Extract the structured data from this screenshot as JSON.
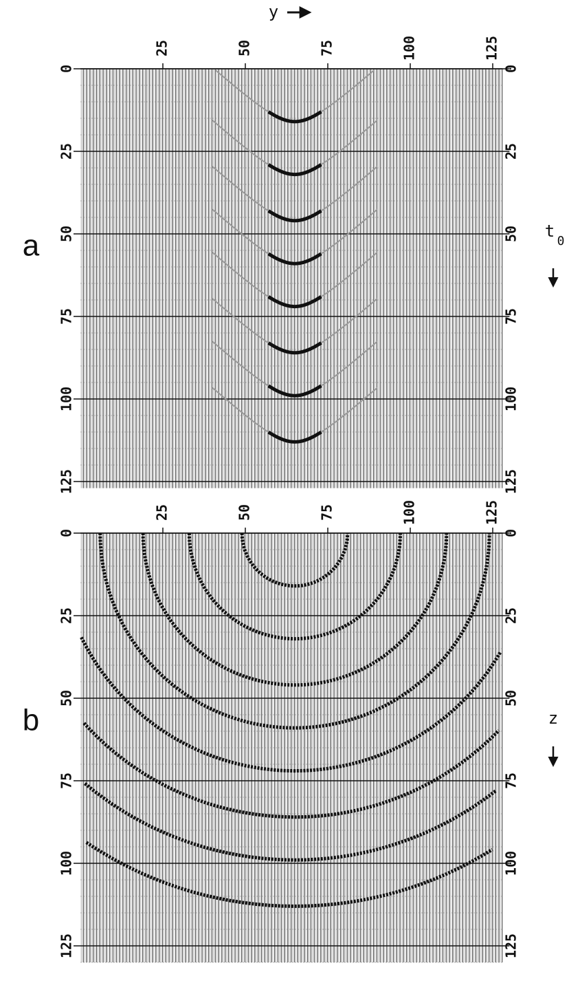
{
  "chart_data": [
    {
      "type": "hyperbola",
      "panel_label": "a",
      "x_label": "y",
      "y_label": {
        "text": "t",
        "subscript": "0"
      },
      "xlim": [
        0,
        128
      ],
      "xticks": [
        25,
        50,
        75,
        100,
        125
      ],
      "ylim": [
        0,
        127
      ],
      "yticks": [
        0,
        25,
        50,
        75,
        100,
        125
      ],
      "x": [
        65,
        65,
        65,
        65,
        65,
        65,
        65,
        65
      ],
      "values": [
        16,
        32,
        46,
        59,
        72,
        86,
        99,
        113
      ],
      "color": "#111111"
    },
    {
      "type": "semicircle",
      "panel_label": "b",
      "y_label": "z",
      "xlim": [
        0,
        128
      ],
      "xticks": [
        25,
        50,
        75,
        100,
        125
      ],
      "ylim": [
        0,
        130
      ],
      "yticks": [
        0,
        25,
        50,
        75,
        100,
        125
      ],
      "x": [
        65,
        65,
        65,
        65,
        65,
        65,
        65,
        65
      ],
      "values": [
        16,
        32,
        46,
        59,
        72,
        86,
        99,
        113
      ],
      "color": "#111111"
    }
  ]
}
